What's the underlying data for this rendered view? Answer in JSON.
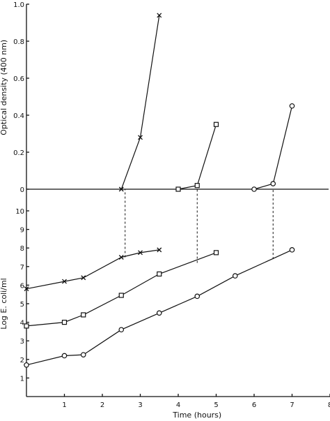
{
  "chart_data": [
    {
      "type": "line",
      "ylabel": "Optical density (400 nm)",
      "xlim": [
        0,
        8
      ],
      "ylim": [
        0,
        1.0
      ],
      "y_ticks": [
        "0",
        "0.2",
        "0.4",
        "0.6",
        "0.8",
        "1.0"
      ],
      "zero_baseline": true,
      "series": [
        {
          "marker": "x",
          "x": [
            2.5,
            3.0,
            3.5
          ],
          "y": [
            0.0,
            0.28,
            0.94
          ]
        },
        {
          "marker": "square",
          "x": [
            4.0,
            4.5,
            5.0
          ],
          "y": [
            0.0,
            0.02,
            0.35
          ]
        },
        {
          "marker": "circle",
          "x": [
            6.0,
            6.5,
            7.0
          ],
          "y": [
            0.0,
            0.03,
            0.45
          ]
        }
      ]
    },
    {
      "type": "line",
      "xlabel": "Time (hours)",
      "ylabel": "Log E. coli/ml",
      "xlim": [
        0,
        8
      ],
      "ylim": [
        0,
        10
      ],
      "x_ticks": [
        "1",
        "2",
        "3",
        "4",
        "5",
        "6",
        "7",
        "8"
      ],
      "y_ticks": [
        "1",
        "2",
        "3",
        "4",
        "5",
        "6",
        "7",
        "8",
        "9",
        "10"
      ],
      "series": [
        {
          "marker": "x",
          "x": [
            0,
            1,
            1.5,
            2.5,
            3.0,
            3.5
          ],
          "y": [
            5.8,
            6.2,
            6.4,
            7.5,
            7.75,
            7.9
          ]
        },
        {
          "marker": "square",
          "x": [
            0,
            1,
            1.5,
            2.5,
            3.5,
            5.0
          ],
          "y": [
            3.8,
            4.0,
            4.4,
            5.45,
            6.6,
            7.75
          ]
        },
        {
          "marker": "circle",
          "x": [
            0,
            1,
            1.5,
            2.5,
            3.5,
            4.5,
            5.5,
            7.0
          ],
          "y": [
            1.7,
            2.2,
            2.25,
            3.6,
            4.5,
            5.4,
            6.5,
            7.9
          ]
        }
      ],
      "connectors": [
        {
          "x": 2.6,
          "from_log": 7.5,
          "to": "od_zero"
        },
        {
          "x": 4.5,
          "from_log": 7.2,
          "to": "od_zero"
        },
        {
          "x": 6.5,
          "from_log": 7.4,
          "to": "od_zero"
        }
      ]
    }
  ]
}
